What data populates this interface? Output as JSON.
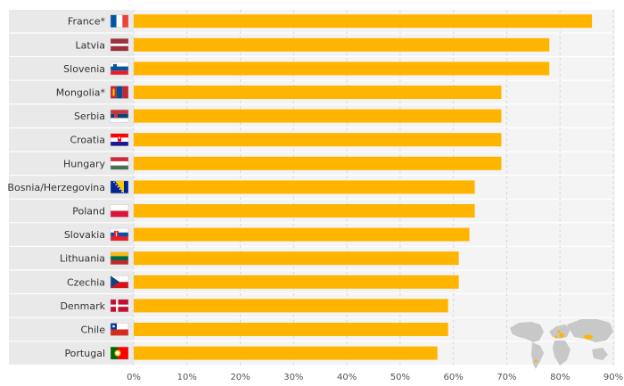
{
  "chart_data": {
    "type": "bar",
    "orientation": "horizontal",
    "categories": [
      "France*",
      "Latvia",
      "Slovenia",
      "Mongolia*",
      "Serbia",
      "Croatia",
      "Hungary",
      "Bosnia/Herzegovina",
      "Poland",
      "Slovakia",
      "Lithuania",
      "Czechia",
      "Denmark",
      "Chile",
      "Portugal"
    ],
    "values": [
      86,
      78,
      78,
      69,
      69,
      69,
      69,
      64,
      64,
      63,
      61,
      61,
      59,
      59,
      57
    ],
    "x_ticks": [
      "0%",
      "10%",
      "20%",
      "30%",
      "40%",
      "50%",
      "60%",
      "70%",
      "80%",
      "90%"
    ],
    "xlim": [
      0,
      90
    ],
    "grid": true,
    "bar_color": "#FFB400",
    "row_band_color": "#E9E9E9",
    "row_band_alt_color": "#F4F4F4",
    "flags": [
      "flag-france",
      "flag-latvia",
      "flag-slovenia",
      "flag-mongolia",
      "flag-serbia",
      "flag-croatia",
      "flag-hungary",
      "flag-bosnia-herzegovina",
      "flag-poland",
      "flag-slovakia",
      "flag-lithuania",
      "flag-czechia",
      "flag-denmark",
      "flag-chile",
      "flag-portugal"
    ],
    "inset_map": "world-map-icon"
  }
}
